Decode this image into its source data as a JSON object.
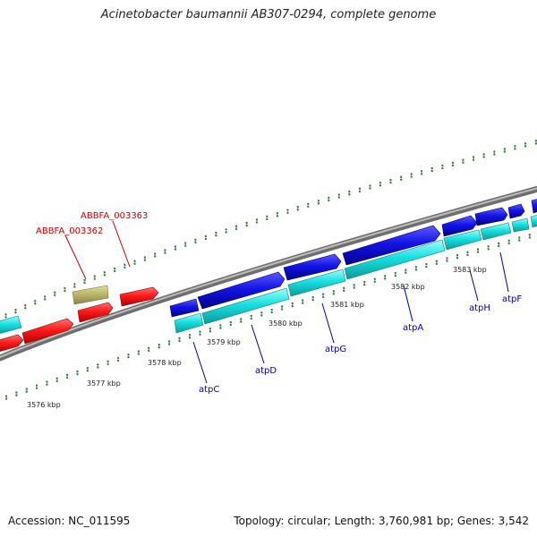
{
  "title": "Acinetobacter baumannii AB307-0294, complete genome",
  "footer": {
    "accession": "Accession: NC_011595",
    "stats": "Topology: circular; Length: 3,760,981 bp; Genes: 3,542"
  },
  "colors": {
    "background": "#ffffff",
    "backbone": "#888888",
    "ticks": "#2e7d32",
    "gene_red": "#ff1a1a",
    "gene_tan": "#bdb76b",
    "gene_blue": "#1414e6",
    "gene_cyan": "#17e0e0",
    "label_red": "#cc0000",
    "label_blue": "#0000aa"
  },
  "scale_labels": [
    "3576 kbp",
    "3577 kbp",
    "3578 kbp",
    "3579 kbp",
    "3580 kbp",
    "3581 kbp",
    "3582 kbp",
    "3583 kbp"
  ],
  "gene_labels_outer": [
    "ABBFA_003362",
    "ABBFA_003363"
  ],
  "gene_labels_inner": [
    "atpC",
    "atpD",
    "atpG",
    "atpA",
    "atpH",
    "atpF"
  ]
}
